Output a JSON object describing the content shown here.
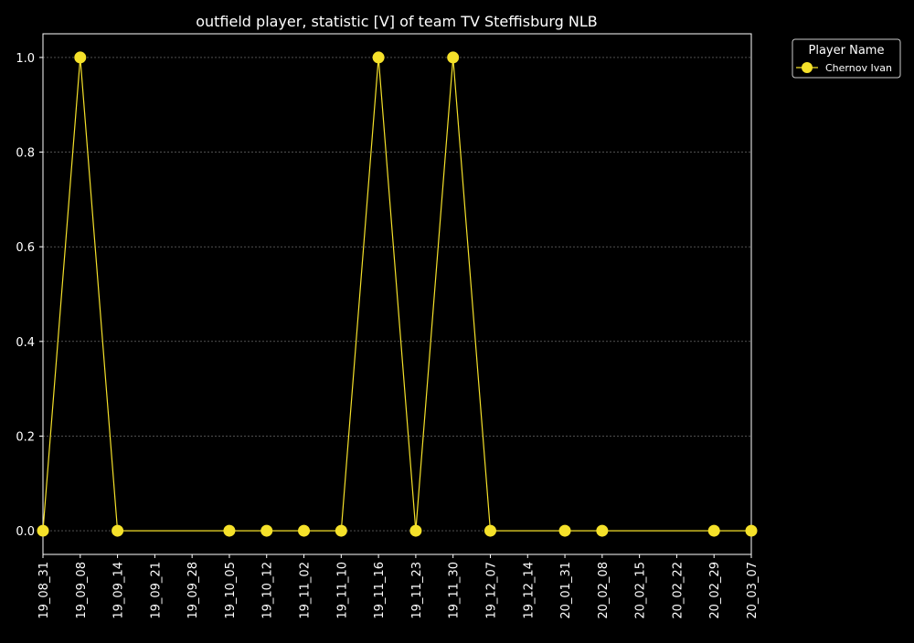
{
  "chart_data": {
    "type": "line",
    "title": "outfield player, statistic [V] of team TV Steffisburg NLB",
    "xlabel": "",
    "ylabel": "",
    "categories": [
      "19_08_31",
      "19_09_08",
      "19_09_14",
      "19_09_21",
      "19_09_28",
      "19_10_05",
      "19_10_12",
      "19_11_02",
      "19_11_10",
      "19_11_16",
      "19_11_23",
      "19_11_30",
      "19_12_07",
      "19_12_14",
      "20_01_31",
      "20_02_08",
      "20_02_15",
      "20_02_22",
      "20_02_29",
      "20_03_07"
    ],
    "series": [
      {
        "name": "Chernov Ivan",
        "color": "#f5e12a",
        "values": [
          0,
          1,
          0,
          null,
          null,
          0,
          0,
          0,
          0,
          1,
          0,
          1,
          0,
          null,
          0,
          0,
          null,
          null,
          0,
          0
        ]
      }
    ],
    "yticks": [
      "0.0",
      "0.2",
      "0.4",
      "0.6",
      "0.8",
      "1.0"
    ],
    "ylim": [
      -0.05,
      1.05
    ],
    "grid": "horizontal dashed",
    "legend": {
      "title": "Player Name",
      "placement": "outside top-right"
    }
  },
  "colors": {
    "background": "#000000",
    "axes": "#ffffff",
    "grid": "#808080",
    "series": "#f5e12a"
  }
}
